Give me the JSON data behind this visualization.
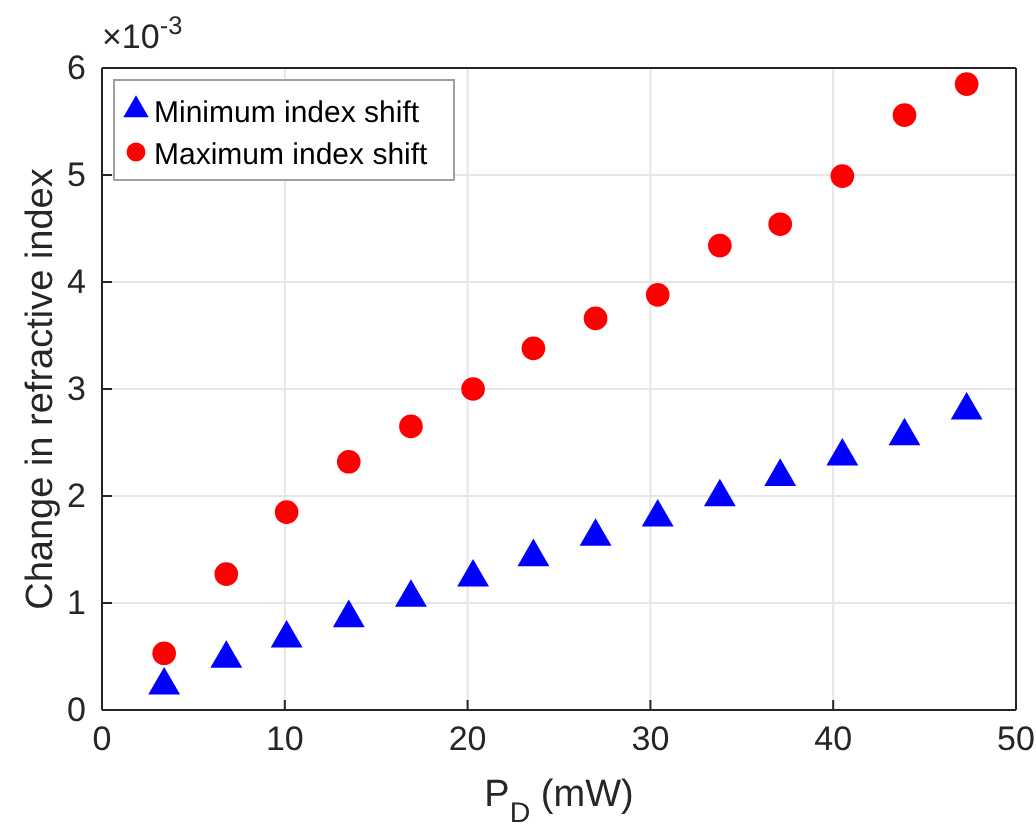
{
  "chart_data": {
    "type": "scatter",
    "xlabel": "P$_{D}$ (mW)",
    "ylabel": "Change in refractive index",
    "annotations": [
      "×10$^{-3}$"
    ],
    "x": [
      3.4,
      6.8,
      10.1,
      13.5,
      16.9,
      20.3,
      23.6,
      27.0,
      30.4,
      33.8,
      37.1,
      40.5,
      43.9,
      47.3
    ],
    "series": [
      {
        "name": "Minimum index shift",
        "color": "#0000ff",
        "marker": "triangle",
        "values": [
          0.23,
          0.48,
          0.67,
          0.86,
          1.05,
          1.24,
          1.43,
          1.62,
          1.8,
          1.99,
          2.18,
          2.37,
          2.56,
          2.8
        ]
      },
      {
        "name": "Maximum index shift",
        "color": "#ff0000",
        "marker": "circle",
        "values": [
          0.53,
          1.27,
          1.85,
          2.32,
          2.65,
          3.0,
          3.38,
          3.66,
          3.88,
          4.34,
          4.54,
          4.99,
          5.56,
          5.85
        ]
      }
    ],
    "xlim": [
      0,
      50
    ],
    "xticks": [
      0,
      10,
      20,
      30,
      40,
      50
    ],
    "ylim": [
      0,
      6
    ],
    "yticks": [
      0,
      1,
      2,
      3,
      4,
      5,
      6
    ],
    "grid": true,
    "legend": "top left"
  }
}
